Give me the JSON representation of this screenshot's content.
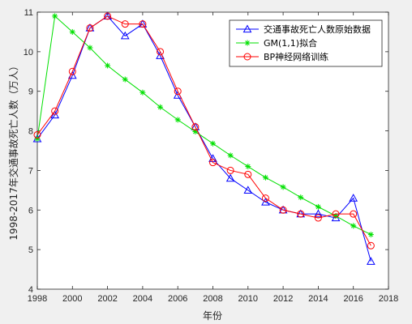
{
  "chart_data": {
    "type": "line",
    "xlabel": "年份",
    "ylabel": "1998-2017年交通事故死亡人数（万人）",
    "xlim": [
      1998,
      2018
    ],
    "ylim": [
      4,
      11
    ],
    "xticks": [
      "1998",
      "2000",
      "2002",
      "2004",
      "2006",
      "2008",
      "2010",
      "2012",
      "2014",
      "2016",
      "2018"
    ],
    "yticks": [
      "4",
      "5",
      "6",
      "7",
      "8",
      "9",
      "10",
      "11"
    ],
    "legend_position": "top-right",
    "grid": false,
    "x": [
      1998,
      1999,
      2000,
      2001,
      2002,
      2003,
      2004,
      2005,
      2006,
      2007,
      2008,
      2009,
      2010,
      2011,
      2012,
      2013,
      2014,
      2015,
      2016,
      2017
    ],
    "series": [
      {
        "name": "交通事故死亡人数原始数据",
        "color": "#0000ff",
        "marker": "triangle",
        "values": [
          7.8,
          8.4,
          9.4,
          10.6,
          10.9,
          10.4,
          10.7,
          9.9,
          8.9,
          8.1,
          7.3,
          6.8,
          6.5,
          6.2,
          6.0,
          5.9,
          5.9,
          5.8,
          6.3,
          4.7
        ]
      },
      {
        "name": "GM(1,1)拟合",
        "color": "#00e000",
        "marker": "star",
        "values": [
          7.8,
          10.9,
          10.5,
          10.1,
          9.65,
          9.3,
          8.97,
          8.6,
          8.28,
          7.98,
          7.68,
          7.38,
          7.1,
          6.82,
          6.58,
          6.32,
          6.08,
          5.85,
          5.6,
          5.38
        ]
      },
      {
        "name": "BP神经网络训练",
        "color": "#ff0000",
        "marker": "circle",
        "values": [
          7.9,
          8.5,
          9.5,
          10.6,
          10.9,
          10.7,
          10.7,
          10.0,
          9.0,
          8.1,
          7.2,
          7.0,
          6.9,
          6.3,
          6.0,
          5.9,
          5.8,
          5.9,
          5.9,
          5.1
        ]
      }
    ]
  }
}
